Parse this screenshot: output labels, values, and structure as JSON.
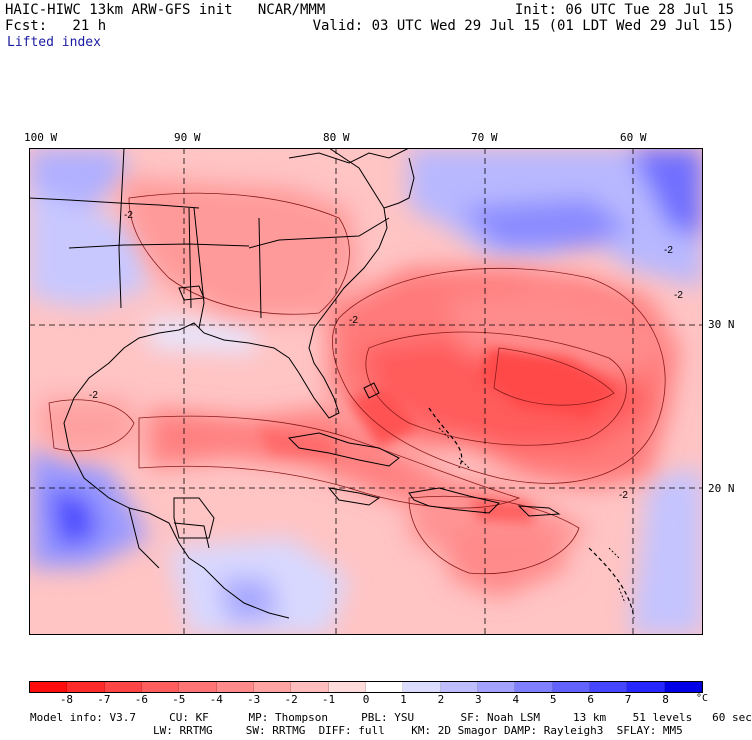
{
  "header": {
    "title_left": "HAIC-HIWC 13km ARW-GFS init   NCAR/MMM",
    "init": "Init: 06 UTC Tue 28 Jul 15",
    "fcst": "Fcst:   21 h",
    "valid": "Valid: 03 UTC Wed 29 Jul 15 (01 LDT Wed 29 Jul 15)",
    "field": "Lifted index"
  },
  "map": {
    "lon_labels": [
      "100 W",
      "90 W",
      "80 W",
      "70 W",
      "60 W"
    ],
    "lat_labels": [
      "30 N",
      "20 N"
    ],
    "contour_labels": [
      "-2"
    ]
  },
  "colorbar": {
    "labels": [
      "-8",
      "-7",
      "-6",
      "-5",
      "-4",
      "-3",
      "-2",
      "-1",
      "0",
      "1",
      "2",
      "3",
      "4",
      "5",
      "6",
      "7",
      "8"
    ],
    "unit": "°C",
    "colors": [
      "#ff0d0d",
      "#ff2b2b",
      "#ff4646",
      "#ff5e5e",
      "#ff7474",
      "#ff8b8b",
      "#ffa3a3",
      "#ffbdbd",
      "#ffdcdc",
      "#ffffff",
      "#dcdcff",
      "#bdbdff",
      "#a3a3ff",
      "#8080ff",
      "#6262ff",
      "#4646ff",
      "#2626ff",
      "#0000e6"
    ]
  },
  "footer": {
    "line1": "Model info: V3.7     CU: KF      MP: Thompson     PBL: YSU       SF: Noah LSM     13 km    51 levels   60 sec",
    "line2": "LW: RRTMG     SW: RRTMG  DIFF: full    KM: 2D Smagor DAMP: Rayleigh3  SFLAY: MM5"
  }
}
